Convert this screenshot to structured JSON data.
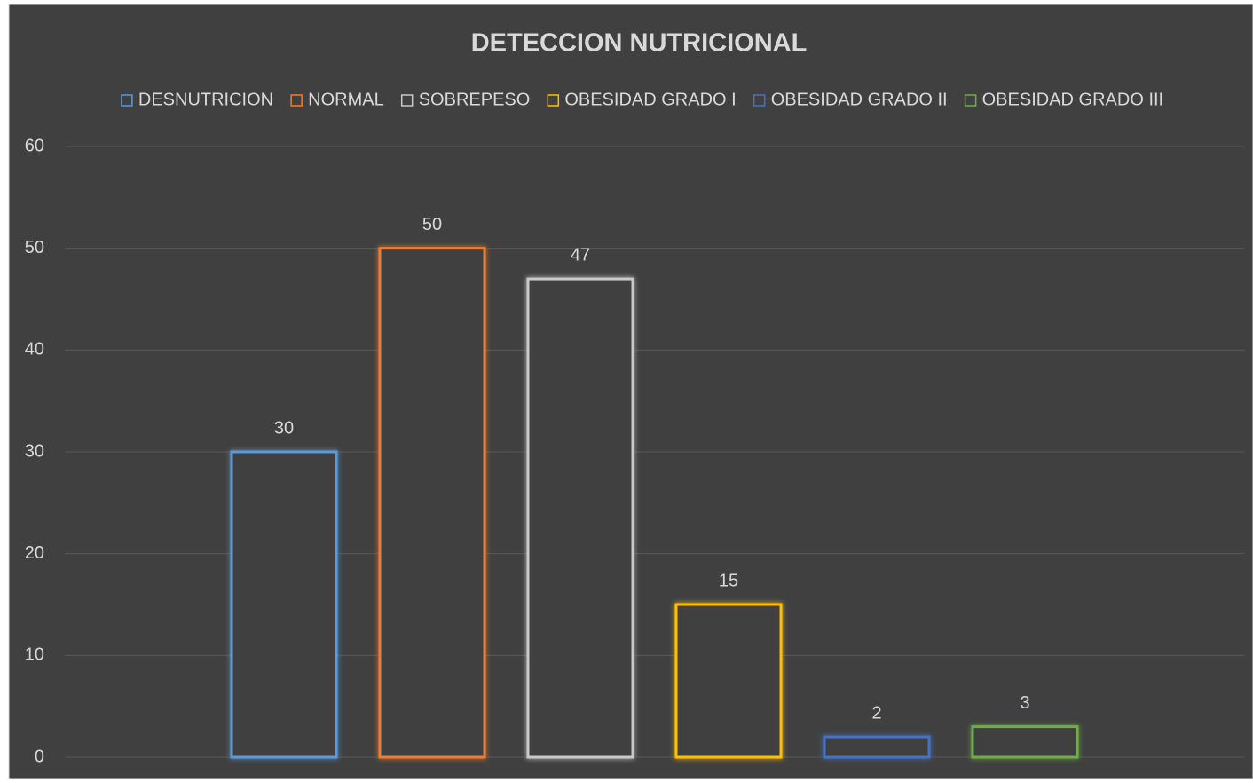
{
  "chart_data": {
    "type": "bar",
    "title": "DETECCION NUTRICIONAL",
    "categories": [
      null
    ],
    "series": [
      {
        "name": "DESNUTRICION",
        "color": "#5b9bd5",
        "values": [
          30
        ]
      },
      {
        "name": "NORMAL",
        "color": "#ed7d31",
        "values": [
          50
        ]
      },
      {
        "name": "SOBREPESO",
        "color": "#c9c9c9",
        "values": [
          47
        ]
      },
      {
        "name": "OBESIDAD GRADO I",
        "color": "#ffc000",
        "values": [
          15
        ]
      },
      {
        "name": "OBESIDAD GRADO II",
        "color": "#4472c4",
        "values": [
          2
        ]
      },
      {
        "name": "OBESIDAD GRADO III",
        "color": "#70ad47",
        "values": [
          3
        ]
      }
    ],
    "ylim": [
      0,
      60
    ],
    "yticks": [
      0,
      10,
      20,
      30,
      40,
      50,
      60
    ],
    "grid": true,
    "legend": "top"
  }
}
